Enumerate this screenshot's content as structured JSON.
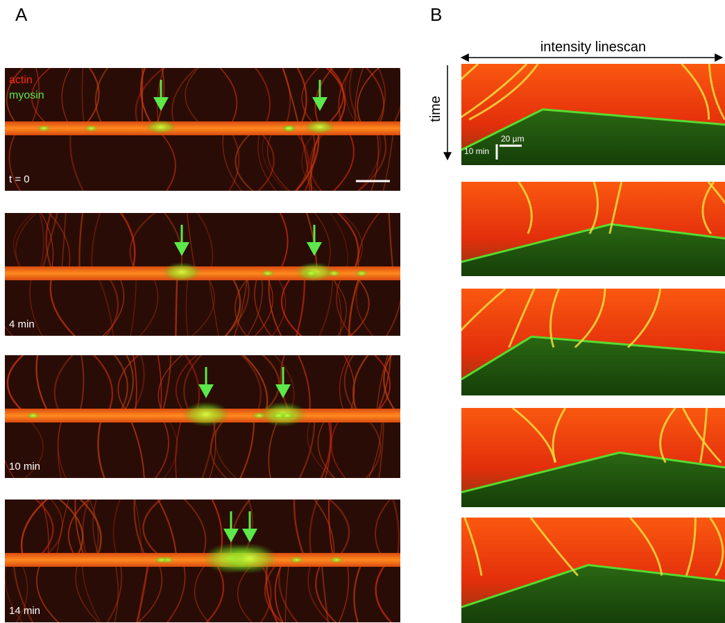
{
  "panel_a": {
    "label": "A",
    "legend": [
      "actin",
      "myosin"
    ],
    "frames": [
      {
        "time_label": "t = 0"
      },
      {
        "time_label": "4 min"
      },
      {
        "time_label": "10 min"
      },
      {
        "time_label": "14 min"
      }
    ]
  },
  "panel_b": {
    "label": "B",
    "x_axis_label": "intensity linescan",
    "y_axis_label": "time",
    "scale_bar_x": "20 µm",
    "scale_bar_y": "10 min"
  }
}
